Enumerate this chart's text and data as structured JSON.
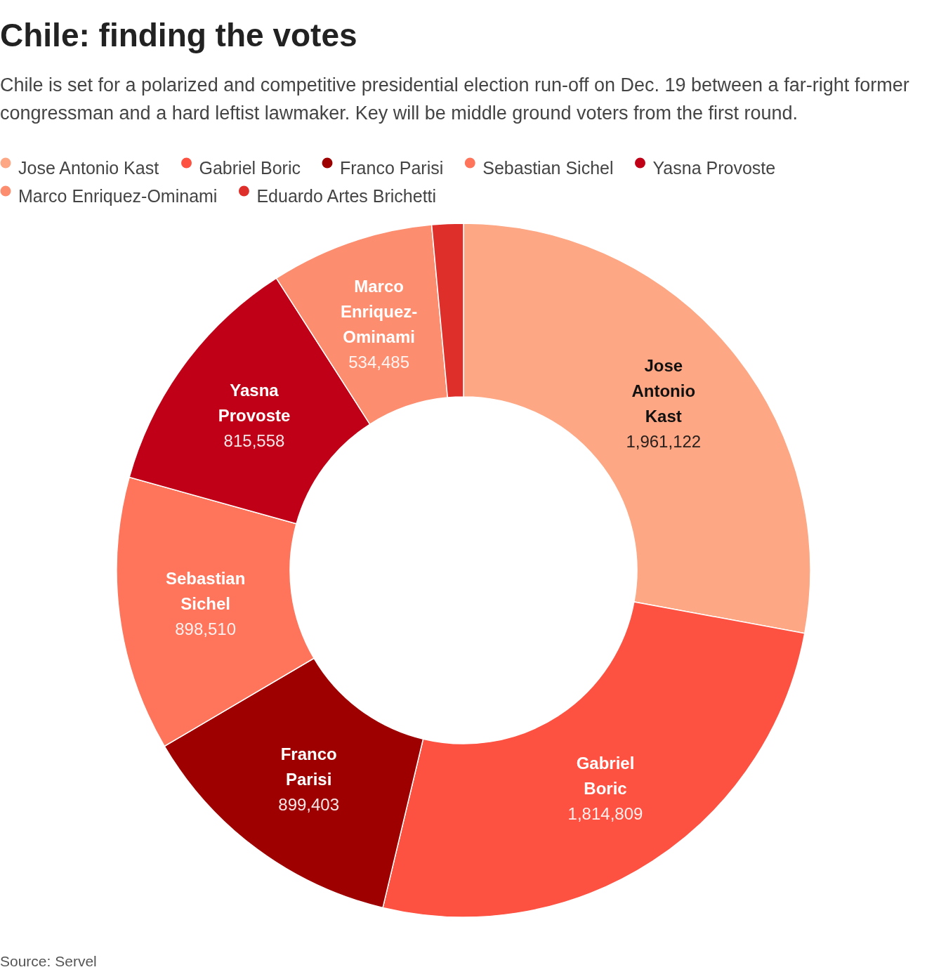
{
  "chart_data": {
    "type": "donut",
    "title": "Chile: finding the votes",
    "subtitle": "Chile is set for a polarized and competitive presidential election run-off on Dec. 19 between a far-right former congressman and a hard leftist lawmaker. Key will be middle ground voters from the first round.",
    "categories": [
      "Jose Antonio Kast",
      "Gabriel Boric",
      "Franco Parisi",
      "Sebastian Sichel",
      "Yasna Provoste",
      "Marco Enriquez-Ominami",
      "Eduardo Artes Brichetti"
    ],
    "values": [
      1961122,
      1814809,
      899403,
      898510,
      815558,
      534485,
      102897
    ],
    "value_labels": [
      "1,961,122",
      "1,814,809",
      "899,403",
      "898,510",
      "815,558",
      "534,485",
      null
    ],
    "colors": [
      "#fda784",
      "#fd5242",
      "#9e0000",
      "#fe755c",
      "#bf0016",
      "#fd8d6f",
      "#de2f2b"
    ],
    "legend": "top left",
    "annotations": [
      "Source: Servel"
    ]
  }
}
